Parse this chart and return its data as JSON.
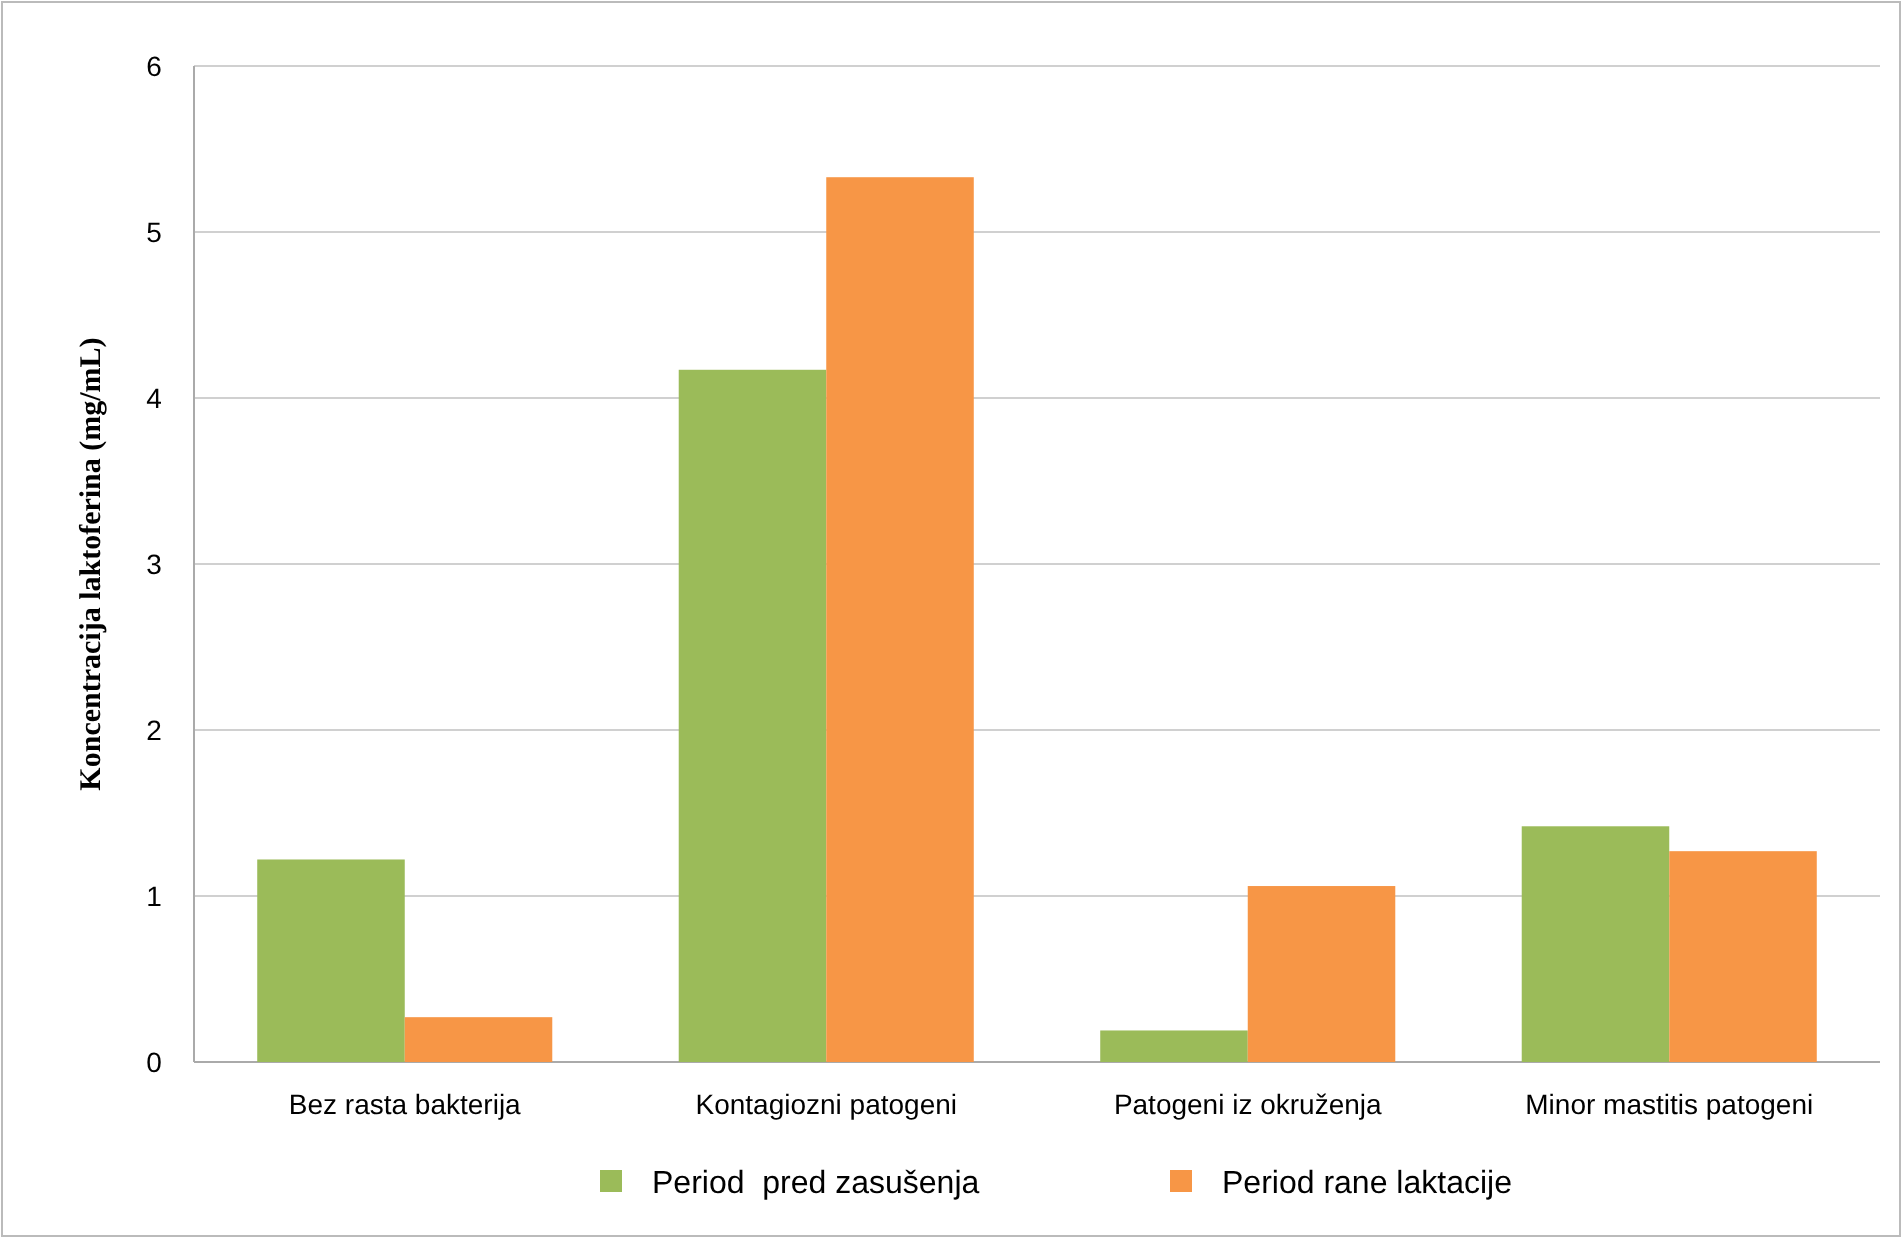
{
  "chart_data": {
    "type": "bar",
    "ylabel": "Koncentracija laktoferina (mg/mL)",
    "categories": [
      "Bez rasta bakterija",
      "Kontagiozni patogeni",
      "Patogeni iz okruženja",
      "Minor mastitis patogeni"
    ],
    "series": [
      {
        "name": "Period  pred zasušenja",
        "color": "#9bbb59",
        "values": [
          1.22,
          4.17,
          0.19,
          1.42
        ]
      },
      {
        "name": "Period rane laktacije",
        "color": "#f79646",
        "values": [
          0.27,
          5.33,
          1.06,
          1.27
        ]
      }
    ],
    "ylim": [
      0,
      6
    ],
    "yticks": [
      0,
      1,
      2,
      3,
      4,
      5,
      6
    ],
    "grid": "y",
    "legend": "bottom"
  }
}
